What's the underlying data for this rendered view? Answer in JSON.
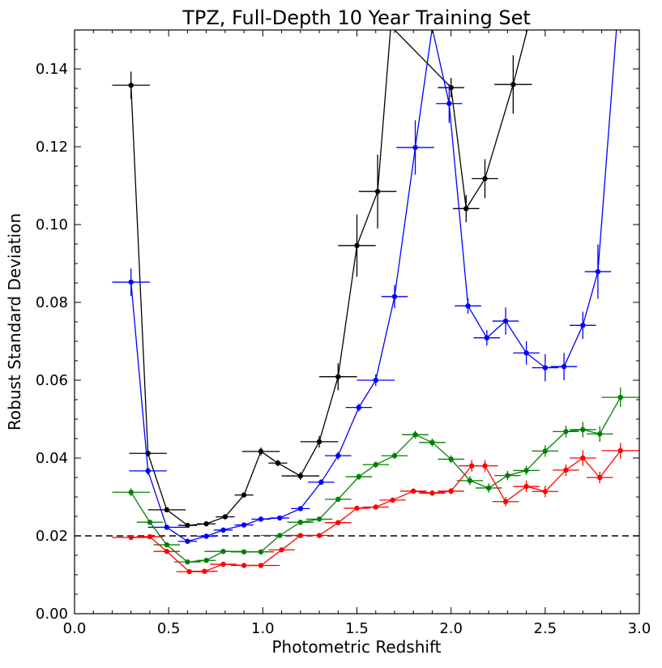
{
  "chart_data": {
    "type": "line",
    "title": "TPZ, Full-Depth 10 Year Training Set",
    "xlabel": "Photometric Redshift",
    "ylabel": "Robust Standard Deviation",
    "xlim": [
      0.0,
      3.0
    ],
    "ylim": [
      0.0,
      0.15
    ],
    "xticks": [
      "0.0",
      "0.5",
      "1.0",
      "1.5",
      "2.0",
      "2.5",
      "3.0"
    ],
    "yticks": [
      "0.00",
      "0.02",
      "0.04",
      "0.06",
      "0.08",
      "0.10",
      "0.12",
      "0.14"
    ],
    "grid": false,
    "legend": "none",
    "reference_line": {
      "y": 0.02,
      "style": "dashed",
      "color": "#000000"
    },
    "series": [
      {
        "color": "#000000",
        "points": [
          {
            "x": 0.3,
            "y": 0.1358,
            "xerr": 0.1,
            "yerr": 0.0035
          },
          {
            "x": 0.39,
            "y": 0.0412,
            "xerr": 0.1,
            "yerr": 0.0008
          },
          {
            "x": 0.49,
            "y": 0.0267,
            "xerr": 0.1,
            "yerr": 0.0005
          },
          {
            "x": 0.6,
            "y": 0.0227,
            "xerr": 0.05,
            "yerr": 0.0004
          },
          {
            "x": 0.7,
            "y": 0.0231,
            "xerr": 0.05,
            "yerr": 0.0004
          },
          {
            "x": 0.8,
            "y": 0.0249,
            "xerr": 0.05,
            "yerr": 0.0004
          },
          {
            "x": 0.9,
            "y": 0.0305,
            "xerr": 0.05,
            "yerr": 0.0005
          },
          {
            "x": 0.99,
            "y": 0.0417,
            "xerr": 0.1,
            "yerr": 0.001
          },
          {
            "x": 1.08,
            "y": 0.0387,
            "xerr": 0.05,
            "yerr": 0.0008
          },
          {
            "x": 1.2,
            "y": 0.0354,
            "xerr": 0.1,
            "yerr": 0.001
          },
          {
            "x": 1.3,
            "y": 0.0442,
            "xerr": 0.1,
            "yerr": 0.0015
          },
          {
            "x": 1.4,
            "y": 0.0609,
            "xerr": 0.1,
            "yerr": 0.0035
          },
          {
            "x": 1.5,
            "y": 0.0946,
            "xerr": 0.1,
            "yerr": 0.008
          },
          {
            "x": 1.61,
            "y": 0.1085,
            "xerr": 0.1,
            "yerr": 0.0095
          },
          {
            "x": 1.68,
            "y": 0.151,
            "xerr": 0.0,
            "yerr": 0.0
          },
          {
            "x": 2.0,
            "y": 0.1352,
            "xerr": 0.07,
            "yerr": 0.0025
          },
          {
            "x": 2.08,
            "y": 0.1041,
            "xerr": 0.07,
            "yerr": 0.0035
          },
          {
            "x": 2.18,
            "y": 0.1118,
            "xerr": 0.07,
            "yerr": 0.005
          },
          {
            "x": 2.33,
            "y": 0.136,
            "xerr": 0.1,
            "yerr": 0.0075
          },
          {
            "x": 2.41,
            "y": 0.151,
            "xerr": 0.0,
            "yerr": 0.0
          }
        ]
      },
      {
        "color": "#0000ff",
        "points": [
          {
            "x": 0.3,
            "y": 0.0852,
            "xerr": 0.1,
            "yerr": 0.0035
          },
          {
            "x": 0.39,
            "y": 0.0367,
            "xerr": 0.1,
            "yerr": 0.001
          },
          {
            "x": 0.49,
            "y": 0.0222,
            "xerr": 0.1,
            "yerr": 0.0004
          },
          {
            "x": 0.6,
            "y": 0.0186,
            "xerr": 0.05,
            "yerr": 0.0004
          },
          {
            "x": 0.7,
            "y": 0.0199,
            "xerr": 0.05,
            "yerr": 0.0004
          },
          {
            "x": 0.79,
            "y": 0.0215,
            "xerr": 0.05,
            "yerr": 0.0004
          },
          {
            "x": 0.9,
            "y": 0.0228,
            "xerr": 0.05,
            "yerr": 0.0004
          },
          {
            "x": 0.99,
            "y": 0.0243,
            "xerr": 0.05,
            "yerr": 0.0004
          },
          {
            "x": 1.09,
            "y": 0.0246,
            "xerr": 0.05,
            "yerr": 0.0005
          },
          {
            "x": 1.2,
            "y": 0.027,
            "xerr": 0.05,
            "yerr": 0.0005
          },
          {
            "x": 1.31,
            "y": 0.0338,
            "xerr": 0.07,
            "yerr": 0.0007
          },
          {
            "x": 1.4,
            "y": 0.0406,
            "xerr": 0.07,
            "yerr": 0.001
          },
          {
            "x": 1.51,
            "y": 0.053,
            "xerr": 0.07,
            "yerr": 0.001
          },
          {
            "x": 1.6,
            "y": 0.06,
            "xerr": 0.1,
            "yerr": 0.0015
          },
          {
            "x": 1.7,
            "y": 0.0815,
            "xerr": 0.07,
            "yerr": 0.003
          },
          {
            "x": 1.81,
            "y": 0.1198,
            "xerr": 0.1,
            "yerr": 0.007
          },
          {
            "x": 1.9,
            "y": 0.1505,
            "xerr": 0.0,
            "yerr": 0.0
          },
          {
            "x": 1.99,
            "y": 0.1311,
            "xerr": 0.07,
            "yerr": 0.005
          },
          {
            "x": 2.09,
            "y": 0.0791,
            "xerr": 0.07,
            "yerr": 0.002
          },
          {
            "x": 2.19,
            "y": 0.0709,
            "xerr": 0.07,
            "yerr": 0.002
          },
          {
            "x": 2.29,
            "y": 0.0752,
            "xerr": 0.07,
            "yerr": 0.0035
          },
          {
            "x": 2.4,
            "y": 0.067,
            "xerr": 0.07,
            "yerr": 0.003
          },
          {
            "x": 2.5,
            "y": 0.0632,
            "xerr": 0.07,
            "yerr": 0.0035
          },
          {
            "x": 2.6,
            "y": 0.0635,
            "xerr": 0.07,
            "yerr": 0.0035
          },
          {
            "x": 2.7,
            "y": 0.0741,
            "xerr": 0.07,
            "yerr": 0.0035
          },
          {
            "x": 2.78,
            "y": 0.0879,
            "xerr": 0.07,
            "yerr": 0.007
          },
          {
            "x": 2.88,
            "y": 0.151,
            "xerr": 0.0,
            "yerr": 0.0
          }
        ]
      },
      {
        "color": "#008000",
        "points": [
          {
            "x": 0.3,
            "y": 0.0312,
            "xerr": 0.1,
            "yerr": 0.001
          },
          {
            "x": 0.4,
            "y": 0.0235,
            "xerr": 0.07,
            "yerr": 0.0005
          },
          {
            "x": 0.49,
            "y": 0.0177,
            "xerr": 0.07,
            "yerr": 0.0004
          },
          {
            "x": 0.6,
            "y": 0.0133,
            "xerr": 0.07,
            "yerr": 0.0004
          },
          {
            "x": 0.7,
            "y": 0.0137,
            "xerr": 0.05,
            "yerr": 0.0004
          },
          {
            "x": 0.79,
            "y": 0.016,
            "xerr": 0.1,
            "yerr": 0.0004
          },
          {
            "x": 0.9,
            "y": 0.0159,
            "xerr": 0.07,
            "yerr": 0.0004
          },
          {
            "x": 0.99,
            "y": 0.0159,
            "xerr": 0.07,
            "yerr": 0.0004
          },
          {
            "x": 1.09,
            "y": 0.0201,
            "xerr": 0.1,
            "yerr": 0.0004
          },
          {
            "x": 1.2,
            "y": 0.0235,
            "xerr": 0.07,
            "yerr": 0.0004
          },
          {
            "x": 1.3,
            "y": 0.0243,
            "xerr": 0.07,
            "yerr": 0.0005
          },
          {
            "x": 1.4,
            "y": 0.0294,
            "xerr": 0.07,
            "yerr": 0.0006
          },
          {
            "x": 1.51,
            "y": 0.0352,
            "xerr": 0.07,
            "yerr": 0.0008
          },
          {
            "x": 1.6,
            "y": 0.0383,
            "xerr": 0.07,
            "yerr": 0.0008
          },
          {
            "x": 1.7,
            "y": 0.0406,
            "xerr": 0.07,
            "yerr": 0.0008
          },
          {
            "x": 1.81,
            "y": 0.046,
            "xerr": 0.07,
            "yerr": 0.001
          },
          {
            "x": 1.9,
            "y": 0.044,
            "xerr": 0.07,
            "yerr": 0.001
          },
          {
            "x": 2.0,
            "y": 0.0397,
            "xerr": 0.07,
            "yerr": 0.001
          },
          {
            "x": 2.1,
            "y": 0.0342,
            "xerr": 0.07,
            "yerr": 0.0012
          },
          {
            "x": 2.2,
            "y": 0.0323,
            "xerr": 0.07,
            "yerr": 0.0012
          },
          {
            "x": 2.3,
            "y": 0.0355,
            "xerr": 0.07,
            "yerr": 0.0012
          },
          {
            "x": 2.4,
            "y": 0.0368,
            "xerr": 0.07,
            "yerr": 0.0012
          },
          {
            "x": 2.5,
            "y": 0.0418,
            "xerr": 0.07,
            "yerr": 0.0015
          },
          {
            "x": 2.61,
            "y": 0.0468,
            "xerr": 0.07,
            "yerr": 0.0015
          },
          {
            "x": 2.7,
            "y": 0.0473,
            "xerr": 0.07,
            "yerr": 0.002
          },
          {
            "x": 2.79,
            "y": 0.0462,
            "xerr": 0.07,
            "yerr": 0.002
          },
          {
            "x": 2.9,
            "y": 0.0556,
            "xerr": 0.1,
            "yerr": 0.0025
          }
        ]
      },
      {
        "color": "#ff0000",
        "points": [
          {
            "x": 0.3,
            "y": 0.0196,
            "xerr": 0.1,
            "yerr": 0.0005
          },
          {
            "x": 0.4,
            "y": 0.0198,
            "xerr": 0.07,
            "yerr": 0.0005
          },
          {
            "x": 0.49,
            "y": 0.016,
            "xerr": 0.07,
            "yerr": 0.0006
          },
          {
            "x": 0.61,
            "y": 0.0108,
            "xerr": 0.07,
            "yerr": 0.0004
          },
          {
            "x": 0.69,
            "y": 0.0109,
            "xerr": 0.07,
            "yerr": 0.0004
          },
          {
            "x": 0.79,
            "y": 0.0127,
            "xerr": 0.07,
            "yerr": 0.0004
          },
          {
            "x": 0.9,
            "y": 0.0124,
            "xerr": 0.07,
            "yerr": 0.0004
          },
          {
            "x": 0.99,
            "y": 0.0124,
            "xerr": 0.1,
            "yerr": 0.0004
          },
          {
            "x": 1.1,
            "y": 0.0164,
            "xerr": 0.07,
            "yerr": 0.0004
          },
          {
            "x": 1.2,
            "y": 0.0201,
            "xerr": 0.07,
            "yerr": 0.0004
          },
          {
            "x": 1.3,
            "y": 0.0201,
            "xerr": 0.07,
            "yerr": 0.0004
          },
          {
            "x": 1.4,
            "y": 0.0234,
            "xerr": 0.07,
            "yerr": 0.0005
          },
          {
            "x": 1.5,
            "y": 0.0271,
            "xerr": 0.07,
            "yerr": 0.0006
          },
          {
            "x": 1.6,
            "y": 0.0274,
            "xerr": 0.07,
            "yerr": 0.0006
          },
          {
            "x": 1.69,
            "y": 0.0292,
            "xerr": 0.07,
            "yerr": 0.0006
          },
          {
            "x": 1.8,
            "y": 0.0315,
            "xerr": 0.07,
            "yerr": 0.0007
          },
          {
            "x": 1.9,
            "y": 0.031,
            "xerr": 0.07,
            "yerr": 0.0007
          },
          {
            "x": 2.0,
            "y": 0.0315,
            "xerr": 0.07,
            "yerr": 0.0008
          },
          {
            "x": 2.11,
            "y": 0.038,
            "xerr": 0.07,
            "yerr": 0.0015
          },
          {
            "x": 2.18,
            "y": 0.038,
            "xerr": 0.07,
            "yerr": 0.0015
          },
          {
            "x": 2.29,
            "y": 0.0288,
            "xerr": 0.07,
            "yerr": 0.0012
          },
          {
            "x": 2.4,
            "y": 0.0327,
            "xerr": 0.07,
            "yerr": 0.0015
          },
          {
            "x": 2.5,
            "y": 0.0314,
            "xerr": 0.07,
            "yerr": 0.0015
          },
          {
            "x": 2.61,
            "y": 0.0369,
            "xerr": 0.07,
            "yerr": 0.0015
          },
          {
            "x": 2.7,
            "y": 0.04,
            "xerr": 0.07,
            "yerr": 0.002
          },
          {
            "x": 2.79,
            "y": 0.035,
            "xerr": 0.07,
            "yerr": 0.0015
          },
          {
            "x": 2.9,
            "y": 0.0419,
            "xerr": 0.1,
            "yerr": 0.002
          }
        ]
      }
    ]
  }
}
